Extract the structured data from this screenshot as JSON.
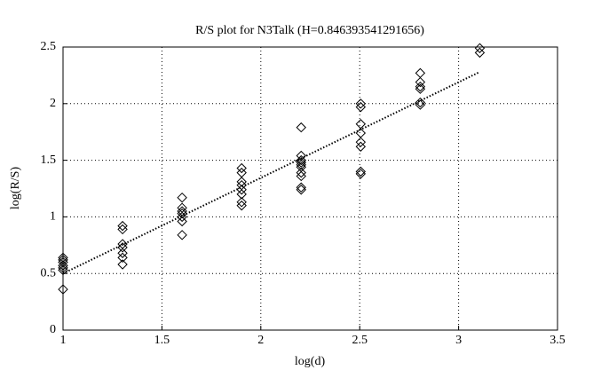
{
  "chart_data": {
    "type": "scatter",
    "title": "R/S plot for N3Talk (H=0.846393541291656)",
    "xlabel": "log(d)",
    "ylabel": "log(R/S)",
    "xlim": [
      1,
      3.5
    ],
    "ylim": [
      0,
      2.5
    ],
    "xticks": [
      1,
      1.5,
      2,
      2.5,
      3,
      3.5
    ],
    "yticks": [
      0,
      0.5,
      1,
      1.5,
      2,
      2.5
    ],
    "grid": true,
    "series": [
      {
        "color": "#000000",
        "marker": "diamond",
        "x": [
          1,
          1,
          1,
          1,
          1,
          1,
          1,
          1.301,
          1.301,
          1.301,
          1.301,
          1.301,
          1.301,
          1.301,
          1.602,
          1.602,
          1.602,
          1.602,
          1.602,
          1.602,
          1.602,
          1.903,
          1.903,
          1.903,
          1.903,
          1.903,
          1.903,
          1.903,
          1.903,
          2.204,
          2.204,
          2.204,
          2.204,
          2.204,
          2.204,
          2.204,
          2.204,
          2.204,
          2.204,
          2.505,
          2.505,
          2.505,
          2.505,
          2.505,
          2.505,
          2.505,
          2.505,
          2.806,
          2.806,
          2.806,
          2.806,
          2.806,
          2.806,
          3.107,
          3.107
        ],
        "y": [
          0.64,
          0.62,
          0.6,
          0.57,
          0.55,
          0.53,
          0.36,
          0.92,
          0.89,
          0.76,
          0.73,
          0.68,
          0.64,
          0.58,
          1.17,
          1.08,
          1.05,
          1.03,
          1.0,
          0.96,
          0.84,
          1.43,
          1.39,
          1.31,
          1.28,
          1.24,
          1.2,
          1.13,
          1.1,
          1.79,
          1.54,
          1.5,
          1.48,
          1.46,
          1.44,
          1.39,
          1.36,
          1.26,
          1.24,
          2.0,
          1.97,
          1.82,
          1.74,
          1.66,
          1.62,
          1.4,
          1.38,
          2.27,
          2.19,
          2.15,
          2.13,
          2.01,
          1.99,
          2.49,
          2.45
        ]
      },
      {
        "color": "#000000",
        "line": "dotted",
        "x": [
          1,
          3.107
        ],
        "y": [
          0.5,
          2.28
        ]
      }
    ]
  }
}
